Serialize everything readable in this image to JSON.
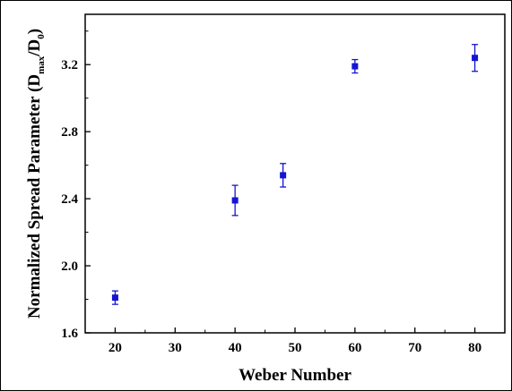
{
  "chart_data": {
    "type": "scatter",
    "xlabel": "Weber Number",
    "ylabel_main": "Normalized Spread Parameter (D",
    "ylabel_sub1": "max",
    "ylabel_mid": "/D",
    "ylabel_sub2": "0",
    "ylabel_end": ")",
    "xlim": [
      15,
      85
    ],
    "ylim": [
      1.6,
      3.5
    ],
    "x_ticks": [
      20,
      30,
      40,
      50,
      60,
      70,
      80
    ],
    "x_tick_labels": [
      "20",
      "30",
      "40",
      "50",
      "60",
      "70",
      "80"
    ],
    "y_ticks": [
      1.6,
      2.0,
      2.4,
      2.8,
      3.2
    ],
    "y_tick_labels": [
      "1.6",
      "2.0",
      "2.4",
      "2.8",
      "3.2"
    ],
    "marker_color": "#1414d2",
    "grid": false,
    "points": [
      {
        "x": 20,
        "y": 1.81,
        "err": 0.04
      },
      {
        "x": 40,
        "y": 2.39,
        "err": 0.09
      },
      {
        "x": 48,
        "y": 2.54,
        "err": 0.07
      },
      {
        "x": 60,
        "y": 3.19,
        "err": 0.04
      },
      {
        "x": 80,
        "y": 3.24,
        "err": 0.08
      }
    ]
  }
}
